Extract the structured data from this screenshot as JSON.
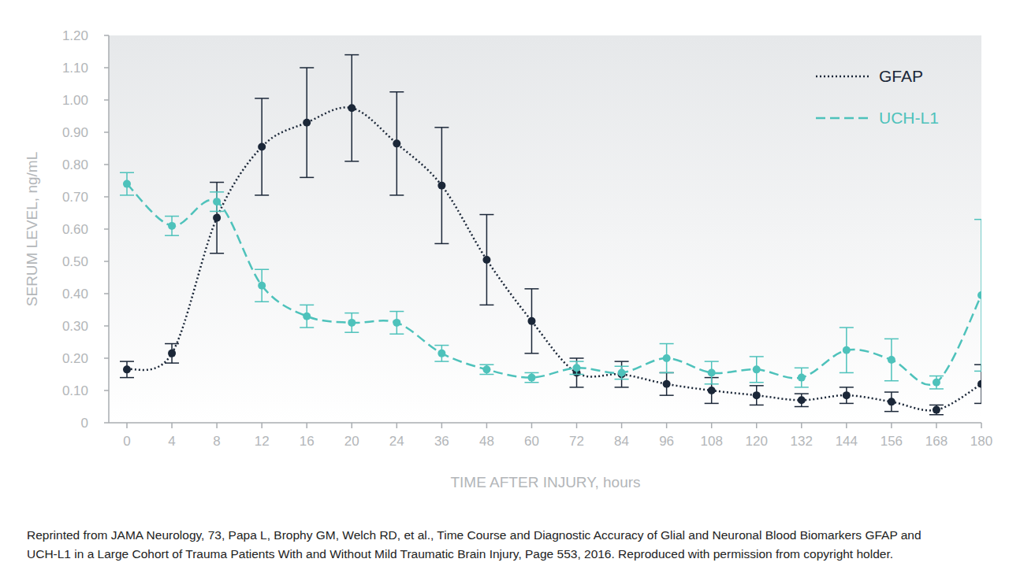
{
  "chart_data": {
    "type": "line",
    "y_label": "SERUM LEVEL, ng/mL",
    "x_label": "TIME AFTER INJURY, hours",
    "caption": "Reprinted from JAMA Neurology, 73, Papa L, Brophy GM, Welch RD, et al., Time Course and Diagnostic Accuracy of Glial and Neuronal Blood Biomarkers GFAP and UCH-L1 in a Large Cohort of Trauma Patients With and Without Mild Traumatic Brain Injury, Page 553, 2016. Reproduced with permission from copyright holder.",
    "categories": [
      "0",
      "4",
      "8",
      "12",
      "16",
      "20",
      "24",
      "36",
      "48",
      "60",
      "72",
      "84",
      "96",
      "108",
      "120",
      "132",
      "144",
      "156",
      "168",
      "180"
    ],
    "series": [
      {
        "name": "GFAP",
        "color": "#1b2738",
        "line_style": "dotted",
        "marker": "circle",
        "values": [
          0.165,
          0.215,
          0.635,
          0.855,
          0.93,
          0.975,
          0.865,
          0.735,
          0.505,
          0.315,
          0.155,
          0.15,
          0.12,
          0.1,
          0.085,
          0.07,
          0.085,
          0.065,
          0.04,
          0.12
        ],
        "errors": [
          0.025,
          0.03,
          0.11,
          0.15,
          0.17,
          0.165,
          0.16,
          0.18,
          0.14,
          0.1,
          0.045,
          0.04,
          0.035,
          0.04,
          0.03,
          0.02,
          0.025,
          0.03,
          0.015,
          0.06
        ]
      },
      {
        "name": "UCH-L1",
        "color": "#4ec2bb",
        "line_style": "dashed",
        "marker": "circle",
        "values": [
          0.74,
          0.61,
          0.685,
          0.425,
          0.33,
          0.31,
          0.31,
          0.215,
          0.165,
          0.14,
          0.17,
          0.155,
          0.2,
          0.155,
          0.165,
          0.14,
          0.225,
          0.195,
          0.125,
          0.395
        ],
        "errors": [
          0.035,
          0.03,
          0.03,
          0.05,
          0.035,
          0.03,
          0.035,
          0.025,
          0.015,
          0.015,
          0.02,
          0.02,
          0.045,
          0.035,
          0.04,
          0.03,
          0.07,
          0.065,
          0.02,
          0.235
        ]
      }
    ],
    "ylim": [
      0,
      1.2
    ],
    "yticks": [
      0,
      {
        "value": 0.1,
        "label": "0.10"
      },
      {
        "value": 0.2,
        "label": "0.20"
      },
      {
        "value": 0.3,
        "label": "0.30"
      },
      {
        "value": 0.4,
        "label": "0.40"
      },
      {
        "value": 0.5,
        "label": "0.50"
      },
      {
        "value": 0.6,
        "label": "0.60"
      },
      {
        "value": 0.7,
        "label": "0.70"
      },
      {
        "value": 0.8,
        "label": "0.80"
      },
      {
        "value": 0.9,
        "label": "0.90"
      },
      {
        "value": 1,
        "label": "1.00"
      },
      {
        "value": 1.1,
        "label": "1.10"
      },
      {
        "value": 1.2,
        "label": "1.20"
      }
    ],
    "grid": false,
    "legend": "top-right"
  }
}
